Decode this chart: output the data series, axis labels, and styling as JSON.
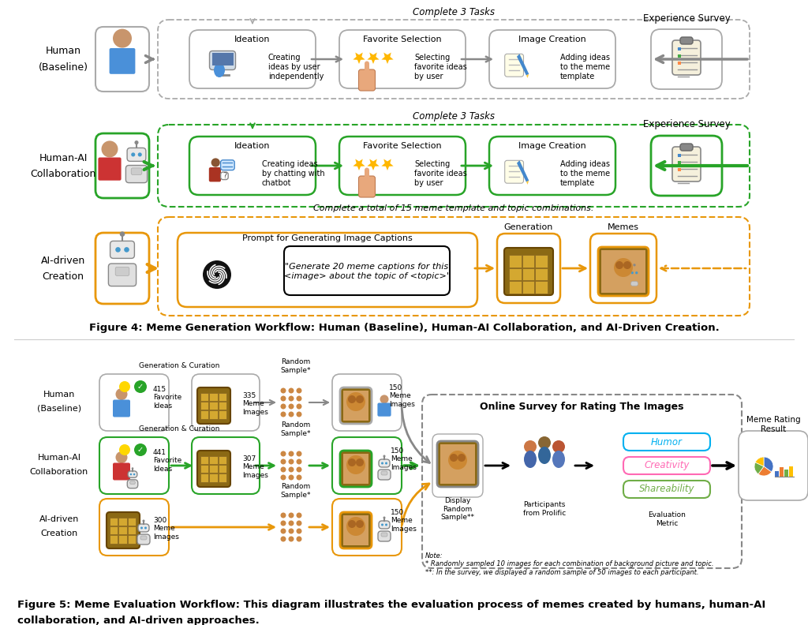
{
  "bg_color": "#ffffff",
  "fig_width": 10.24,
  "fig_height": 7.92,
  "figure4_caption": "Figure 4: Meme Generation Workflow: Human (Baseline), Human-AI Collaboration, and AI-Driven Creation.",
  "figure5_caption_line1": "Figure 5: Meme Evaluation Workflow: This diagram illustrates the evaluation process of memes created by humans, human-AI",
  "figure5_caption_line2": "collaboration, and AI-driven approaches.",
  "task3_label": "Complete 3 Tasks",
  "task15_label": "Complete a total of 15 meme template and topic combinations.",
  "row1_label": "Human\n(Baseline)",
  "row2_label": "Human-AI\nCollaboration",
  "row3_label": "AI-driven\nCreation",
  "box1_title": "Ideation",
  "box2_title": "Favorite Selection",
  "box3_title": "Image Creation",
  "row1_box1_text": "Creating\nideas by user\nindependently",
  "row1_box2_text": "Selecting\nfavorite ideas\nby user",
  "row1_box3_text": "Adding ideas\nto the meme\ntemplate",
  "row2_box1_text": "Creating ideas\nby chatting with\nchatbot",
  "row2_box2_text": "Selecting\nfavorite ideas\nby user",
  "row2_box3_text": "Adding ideas\nto the meme\ntemplate",
  "survey_label": "Experience Survey",
  "row3_prompt_title": "Prompt for Generating Image Captions",
  "row3_prompt_text": "\"Generate 20 meme captions for this\n<image> about the topic of <topic>\"",
  "row3_gen_label": "Generation",
  "row3_meme_label": "Memes",
  "color_gray_border": "#999999",
  "color_green": "#28a428",
  "color_orange": "#e8970a",
  "f5_r1_label": "Human\n(Baseline)",
  "f5_r2_label": "Human-AI\nCollaboration",
  "f5_r3_label": "AI-driven\nCreation",
  "f5_r1_b1": "415\nFavorite\nIdeas",
  "f5_r1_b2": "335\nMeme\nImages",
  "f5_r1_b4": "150\nMeme\nImages",
  "f5_r2_b1": "441\nFavorite\nIdeas",
  "f5_r2_b2": "307\nMeme\nImages",
  "f5_r2_b4": "150\nMeme\nImages",
  "f5_r3_b1": "300\nMeme\nImages",
  "f5_r3_b4": "150\nMeme\nImages",
  "random_sample_label": "Random\nSample*",
  "gen_curation_label": "Generation & Curation",
  "survey_title": "Online Survey for Rating The Images",
  "display_label": "Display\nRandom\nSample**",
  "participants_label": "Participants\nfrom Prolific",
  "eval_label": "Evaluation\nMetric",
  "humor_label": "Humor",
  "creativity_label": "Creativity",
  "shareability_label": "Shareability",
  "result_label": "Meme Rating\nResult",
  "note_text": "Note:\n* Randomly sampled 10 images for each combination of background picture and topic.\n**: In the survey, we displayed a random sample of 50 images to each participant.",
  "color_humor": "#00b0f0",
  "color_creativity": "#ff69b4",
  "color_shareability": "#70ad47"
}
